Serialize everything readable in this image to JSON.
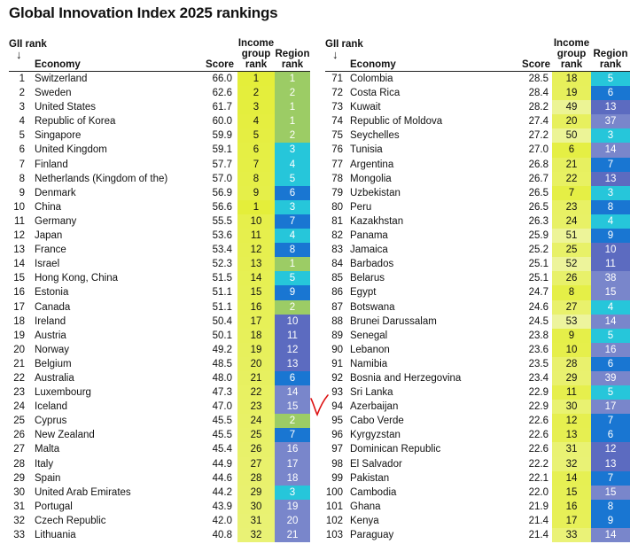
{
  "title": "Global Innovation Index 2025 rankings",
  "headers": {
    "gii_rank": "GII rank",
    "arrow": "↓",
    "economy": "Economy",
    "score": "Score",
    "income_group_rank": [
      "Income",
      "group",
      "rank"
    ],
    "region_rank": [
      "Region",
      "rank"
    ]
  },
  "colors": {
    "income_scale": [
      "#e4ee3a",
      "#eef5a8"
    ],
    "region_scale": [
      "#9ccc65",
      "#26c6da",
      "#1976d2",
      "#5c6bc0",
      "#7986cb"
    ]
  },
  "rows_left": [
    {
      "rank": "1",
      "economy": "Switzerland",
      "score": "66.0",
      "income": "1",
      "region": "1"
    },
    {
      "rank": "2",
      "economy": "Sweden",
      "score": "62.6",
      "income": "2",
      "region": "2"
    },
    {
      "rank": "3",
      "economy": "United States",
      "score": "61.7",
      "income": "3",
      "region": "1"
    },
    {
      "rank": "4",
      "economy": "Republic of Korea",
      "score": "60.0",
      "income": "4",
      "region": "1"
    },
    {
      "rank": "5",
      "economy": "Singapore",
      "score": "59.9",
      "income": "5",
      "region": "2"
    },
    {
      "rank": "6",
      "economy": "United Kingdom",
      "score": "59.1",
      "income": "6",
      "region": "3"
    },
    {
      "rank": "7",
      "economy": "Finland",
      "score": "57.7",
      "income": "7",
      "region": "4"
    },
    {
      "rank": "8",
      "economy": "Netherlands (Kingdom of the)",
      "score": "57.0",
      "income": "8",
      "region": "5"
    },
    {
      "rank": "9",
      "economy": "Denmark",
      "score": "56.9",
      "income": "9",
      "region": "6"
    },
    {
      "rank": "10",
      "economy": "China",
      "score": "56.6",
      "income": "1",
      "region": "3"
    },
    {
      "rank": "11",
      "economy": "Germany",
      "score": "55.5",
      "income": "10",
      "region": "7"
    },
    {
      "rank": "12",
      "economy": "Japan",
      "score": "53.6",
      "income": "11",
      "region": "4"
    },
    {
      "rank": "13",
      "economy": "France",
      "score": "53.4",
      "income": "12",
      "region": "8"
    },
    {
      "rank": "14",
      "economy": "Israel",
      "score": "52.3",
      "income": "13",
      "region": "1"
    },
    {
      "rank": "15",
      "economy": "Hong Kong, China",
      "score": "51.5",
      "income": "14",
      "region": "5"
    },
    {
      "rank": "16",
      "economy": "Estonia",
      "score": "51.1",
      "income": "15",
      "region": "9"
    },
    {
      "rank": "17",
      "economy": "Canada",
      "score": "51.1",
      "income": "16",
      "region": "2"
    },
    {
      "rank": "18",
      "economy": "Ireland",
      "score": "50.4",
      "income": "17",
      "region": "10"
    },
    {
      "rank": "19",
      "economy": "Austria",
      "score": "50.1",
      "income": "18",
      "region": "11"
    },
    {
      "rank": "20",
      "economy": "Norway",
      "score": "49.2",
      "income": "19",
      "region": "12"
    },
    {
      "rank": "21",
      "economy": "Belgium",
      "score": "48.5",
      "income": "20",
      "region": "13"
    },
    {
      "rank": "22",
      "economy": "Australia",
      "score": "48.0",
      "income": "21",
      "region": "6"
    },
    {
      "rank": "23",
      "economy": "Luxembourg",
      "score": "47.3",
      "income": "22",
      "region": "14"
    },
    {
      "rank": "24",
      "economy": "Iceland",
      "score": "47.0",
      "income": "23",
      "region": "15"
    },
    {
      "rank": "25",
      "economy": "Cyprus",
      "score": "45.5",
      "income": "24",
      "region": "2"
    },
    {
      "rank": "26",
      "economy": "New Zealand",
      "score": "45.5",
      "income": "25",
      "region": "7"
    },
    {
      "rank": "27",
      "economy": "Malta",
      "score": "45.4",
      "income": "26",
      "region": "16"
    },
    {
      "rank": "28",
      "economy": "Italy",
      "score": "44.9",
      "income": "27",
      "region": "17"
    },
    {
      "rank": "29",
      "economy": "Spain",
      "score": "44.6",
      "income": "28",
      "region": "18"
    },
    {
      "rank": "30",
      "economy": "United Arab Emirates",
      "score": "44.2",
      "income": "29",
      "region": "3"
    },
    {
      "rank": "31",
      "economy": "Portugal",
      "score": "43.9",
      "income": "30",
      "region": "19"
    },
    {
      "rank": "32",
      "economy": "Czech Republic",
      "score": "42.0",
      "income": "31",
      "region": "20"
    },
    {
      "rank": "33",
      "economy": "Lithuania",
      "score": "40.8",
      "income": "32",
      "region": "21"
    }
  ],
  "rows_right": [
    {
      "rank": "71",
      "economy": "Colombia",
      "score": "28.5",
      "income": "18",
      "region": "5"
    },
    {
      "rank": "72",
      "economy": "Costa Rica",
      "score": "28.4",
      "income": "19",
      "region": "6"
    },
    {
      "rank": "73",
      "economy": "Kuwait",
      "score": "28.2",
      "income": "49",
      "region": "13"
    },
    {
      "rank": "74",
      "economy": "Republic of Moldova",
      "score": "27.4",
      "income": "20",
      "region": "37"
    },
    {
      "rank": "75",
      "economy": "Seychelles",
      "score": "27.2",
      "income": "50",
      "region": "3"
    },
    {
      "rank": "76",
      "economy": "Tunisia",
      "score": "27.0",
      "income": "6",
      "region": "14"
    },
    {
      "rank": "77",
      "economy": "Argentina",
      "score": "26.8",
      "income": "21",
      "region": "7"
    },
    {
      "rank": "78",
      "economy": "Mongolia",
      "score": "26.7",
      "income": "22",
      "region": "13"
    },
    {
      "rank": "79",
      "economy": "Uzbekistan",
      "score": "26.5",
      "income": "7",
      "region": "3"
    },
    {
      "rank": "80",
      "economy": "Peru",
      "score": "26.5",
      "income": "23",
      "region": "8"
    },
    {
      "rank": "81",
      "economy": "Kazakhstan",
      "score": "26.3",
      "income": "24",
      "region": "4"
    },
    {
      "rank": "82",
      "economy": "Panama",
      "score": "25.9",
      "income": "51",
      "region": "9"
    },
    {
      "rank": "83",
      "economy": "Jamaica",
      "score": "25.2",
      "income": "25",
      "region": "10"
    },
    {
      "rank": "84",
      "economy": "Barbados",
      "score": "25.1",
      "income": "52",
      "region": "11"
    },
    {
      "rank": "85",
      "economy": "Belarus",
      "score": "25.1",
      "income": "26",
      "region": "38"
    },
    {
      "rank": "86",
      "economy": "Egypt",
      "score": "24.7",
      "income": "8",
      "region": "15"
    },
    {
      "rank": "87",
      "economy": "Botswana",
      "score": "24.6",
      "income": "27",
      "region": "4"
    },
    {
      "rank": "88",
      "economy": "Brunei Darussalam",
      "score": "24.5",
      "income": "53",
      "region": "14"
    },
    {
      "rank": "89",
      "economy": "Senegal",
      "score": "23.8",
      "income": "9",
      "region": "5"
    },
    {
      "rank": "90",
      "economy": "Lebanon",
      "score": "23.6",
      "income": "10",
      "region": "16"
    },
    {
      "rank": "91",
      "economy": "Namibia",
      "score": "23.5",
      "income": "28",
      "region": "6"
    },
    {
      "rank": "92",
      "economy": "Bosnia and Herzegovina",
      "score": "23.4",
      "income": "29",
      "region": "39"
    },
    {
      "rank": "93",
      "economy": "Sri Lanka",
      "score": "22.9",
      "income": "11",
      "region": "5"
    },
    {
      "rank": "94",
      "economy": "Azerbaijan",
      "score": "22.9",
      "income": "30",
      "region": "17"
    },
    {
      "rank": "95",
      "economy": "Cabo Verde",
      "score": "22.6",
      "income": "12",
      "region": "7"
    },
    {
      "rank": "96",
      "economy": "Kyrgyzstan",
      "score": "22.6",
      "income": "13",
      "region": "6"
    },
    {
      "rank": "97",
      "economy": "Dominican Republic",
      "score": "22.6",
      "income": "31",
      "region": "12"
    },
    {
      "rank": "98",
      "economy": "El Salvador",
      "score": "22.2",
      "income": "32",
      "region": "13"
    },
    {
      "rank": "99",
      "economy": "Pakistan",
      "score": "22.1",
      "income": "14",
      "region": "7"
    },
    {
      "rank": "100",
      "economy": "Cambodia",
      "score": "22.0",
      "income": "15",
      "region": "15"
    },
    {
      "rank": "101",
      "economy": "Ghana",
      "score": "21.9",
      "income": "16",
      "region": "8"
    },
    {
      "rank": "102",
      "economy": "Kenya",
      "score": "21.4",
      "income": "17",
      "region": "9"
    },
    {
      "rank": "103",
      "economy": "Paraguay",
      "score": "21.4",
      "income": "33",
      "region": "14"
    }
  ]
}
